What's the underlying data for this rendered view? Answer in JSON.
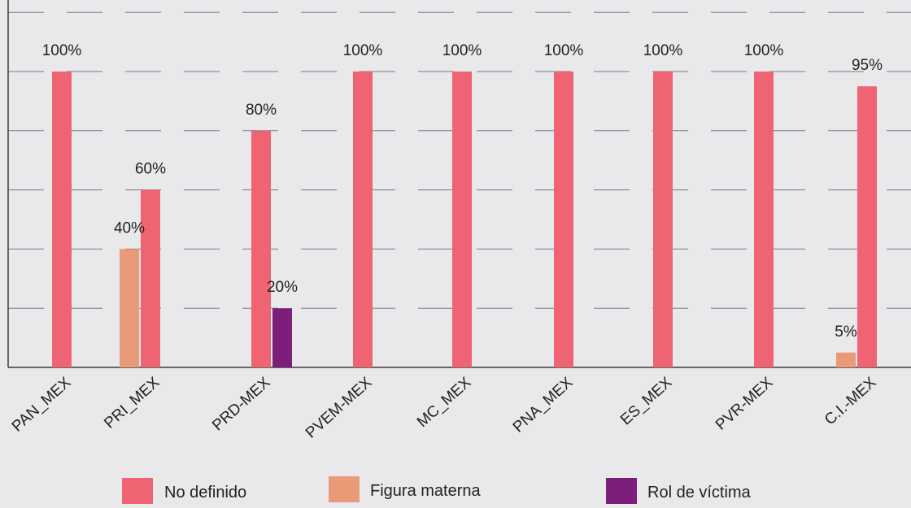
{
  "chart_data": {
    "type": "bar",
    "categories": [
      "PAN_MEX",
      "PRI_MEX",
      "PRD-MEX",
      "PVEM-MEX",
      "MC_MEX",
      "PNA_MEX",
      "ES_MEX",
      "PVR-MEX",
      "C.I.-MEX"
    ],
    "series": [
      {
        "name": "No definido",
        "color": "#ef6372",
        "values": [
          100,
          60,
          80,
          100,
          100,
          100,
          100,
          100,
          95
        ],
        "labels": [
          "100%",
          "60%",
          "80%",
          "100%",
          "100%",
          "100%",
          "100%",
          "100%",
          "95%"
        ]
      },
      {
        "name": "Figura materna",
        "color": "#e99a76",
        "values": [
          0,
          40,
          0,
          0,
          0,
          0,
          0,
          0,
          5
        ],
        "labels": [
          "",
          "40%",
          "",
          "",
          "",
          "",
          "",
          "",
          "5%"
        ]
      },
      {
        "name": "Rol de víctima",
        "color": "#7d1f7a",
        "values": [
          0,
          0,
          20,
          0,
          0,
          0,
          0,
          0,
          0
        ],
        "labels": [
          "",
          "",
          "20%",
          "",
          "",
          "",
          "",
          "",
          ""
        ]
      }
    ],
    "ylim": [
      0,
      120
    ],
    "grid": true,
    "legend_position": "bottom"
  }
}
